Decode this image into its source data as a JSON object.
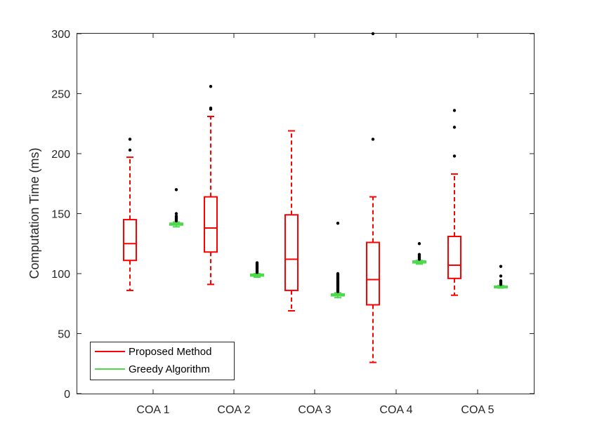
{
  "chart_data": {
    "type": "boxplot",
    "title": "",
    "xlabel": "",
    "ylabel": "Computation Time (ms)",
    "ylim": [
      0,
      300
    ],
    "yticks": [
      0,
      50,
      100,
      150,
      200,
      250,
      300
    ],
    "grid": false,
    "legend_position": "bottom-left",
    "categories": [
      "COA 1",
      "COA 2",
      "COA 3",
      "COA 4",
      "COA 5"
    ],
    "series": [
      {
        "name": "Proposed Method",
        "color": "#ff0000",
        "boxes": [
          {
            "whisker_low": 86,
            "q1": 111,
            "median": 125,
            "q3": 145,
            "whisker_high": 197,
            "outliers": [
              203,
              212
            ]
          },
          {
            "whisker_low": 91,
            "q1": 118,
            "median": 138,
            "q3": 164,
            "whisker_high": 231,
            "outliers": [
              237,
              238,
              256
            ]
          },
          {
            "whisker_low": 69,
            "q1": 86,
            "median": 112,
            "q3": 149,
            "whisker_high": 219,
            "outliers": []
          },
          {
            "whisker_low": 26,
            "q1": 74,
            "median": 95,
            "q3": 126,
            "whisker_high": 164,
            "outliers": [
              212,
              300
            ]
          },
          {
            "whisker_low": 82,
            "q1": 96,
            "median": 107,
            "q3": 131,
            "whisker_high": 183,
            "outliers": [
              198,
              222,
              236
            ]
          }
        ]
      },
      {
        "name": "Greedy Algorithm",
        "color": "#4cd94c",
        "boxes": [
          {
            "whisker_low": 139,
            "q1": 140.5,
            "median": 141,
            "q3": 142,
            "whisker_high": 143,
            "outliers": [
              144,
              145,
              146,
              147,
              148,
              150,
              170
            ]
          },
          {
            "whisker_low": 97,
            "q1": 98,
            "median": 99,
            "q3": 99.5,
            "whisker_high": 100,
            "outliers": [
              101,
              102,
              103,
              104,
              105,
              106,
              107,
              108,
              109
            ]
          },
          {
            "whisker_low": 80,
            "q1": 81.5,
            "median": 82,
            "q3": 83,
            "whisker_high": 84,
            "outliers": [
              85,
              86,
              87,
              88,
              89,
              90,
              91,
              92,
              93,
              94,
              95,
              96,
              97,
              98,
              99,
              100,
              142
            ]
          },
          {
            "whisker_low": 108,
            "q1": 109,
            "median": 110,
            "q3": 110.5,
            "whisker_high": 111,
            "outliers": [
              112,
              113,
              114,
              115,
              116,
              125
            ]
          },
          {
            "whisker_low": 88,
            "q1": 88.5,
            "median": 89,
            "q3": 89.5,
            "whisker_high": 90,
            "outliers": [
              91,
              92,
              93,
              94,
              98,
              106
            ]
          }
        ]
      }
    ]
  }
}
